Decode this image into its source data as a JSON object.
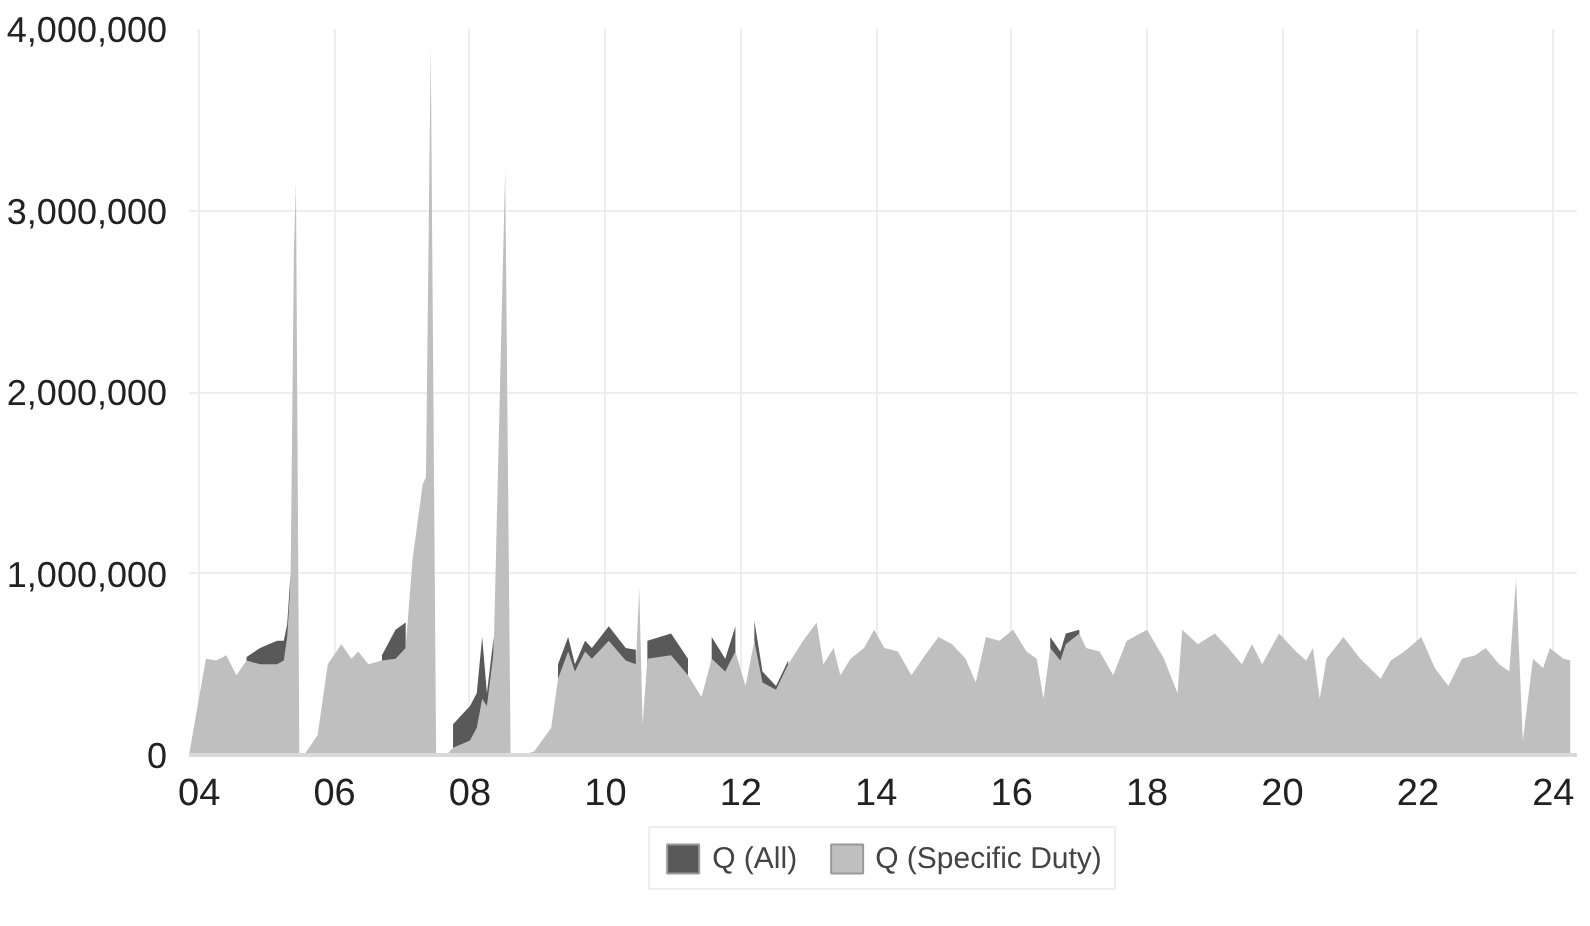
{
  "chart_data": {
    "type": "area",
    "x": [
      2003.85,
      2004.1,
      2004.25,
      2004.4,
      2004.55,
      2004.7,
      2004.9,
      2005.15,
      2005.25,
      2005.3,
      2005.35,
      2005.4,
      2005.43,
      2005.48,
      2005.55,
      2005.75,
      2005.9,
      2006.1,
      2006.25,
      2006.35,
      2006.5,
      2006.7,
      2006.9,
      2007.05,
      2007.15,
      2007.3,
      2007.35,
      2007.42,
      2007.5,
      2007.65,
      2007.75,
      2008.0,
      2008.1,
      2008.18,
      2008.25,
      2008.35,
      2008.52,
      2008.6,
      2008.8,
      2008.95,
      2009.2,
      2009.3,
      2009.45,
      2009.55,
      2009.7,
      2009.8,
      2010.05,
      2010.3,
      2010.45,
      2010.5,
      2010.55,
      2010.62,
      2010.97,
      2011.22,
      2011.42,
      2011.57,
      2011.77,
      2011.92,
      2012.07,
      2012.2,
      2012.32,
      2012.52,
      2012.7,
      2012.92,
      2013.12,
      2013.22,
      2013.37,
      2013.47,
      2013.62,
      2013.82,
      2013.97,
      2014.12,
      2014.32,
      2014.52,
      2014.72,
      2014.92,
      2015.12,
      2015.32,
      2015.47,
      2015.62,
      2015.82,
      2016.02,
      2016.22,
      2016.37,
      2016.47,
      2016.57,
      2016.72,
      2016.8,
      2017.0,
      2017.1,
      2017.3,
      2017.5,
      2017.7,
      2018.0,
      2018.25,
      2018.45,
      2018.52,
      2018.75,
      2019.0,
      2019.2,
      2019.4,
      2019.55,
      2019.7,
      2019.95,
      2020.2,
      2020.35,
      2020.45,
      2020.55,
      2020.65,
      2020.9,
      2021.15,
      2021.45,
      2021.6,
      2021.8,
      2022.05,
      2022.25,
      2022.45,
      2022.65,
      2022.85,
      2023.0,
      2023.2,
      2023.35,
      2023.45,
      2023.55,
      2023.7,
      2023.85,
      2023.95,
      2024.15,
      2024.25
    ],
    "series": [
      {
        "name": "Q (All)",
        "color": "#595959",
        "values": [
          null,
          null,
          null,
          null,
          null,
          540000,
          590000,
          630000,
          630000,
          720000,
          1000000,
          null,
          null,
          null,
          null,
          null,
          null,
          null,
          null,
          null,
          null,
          550000,
          690000,
          730000,
          null,
          null,
          null,
          null,
          null,
          null,
          170000,
          270000,
          340000,
          650000,
          340000,
          650000,
          null,
          null,
          null,
          null,
          null,
          500000,
          650000,
          500000,
          630000,
          590000,
          710000,
          590000,
          580000,
          null,
          null,
          630000,
          670000,
          530000,
          null,
          650000,
          530000,
          710000,
          null,
          740000,
          460000,
          380000,
          520000,
          null,
          null,
          null,
          null,
          null,
          null,
          null,
          null,
          null,
          null,
          null,
          null,
          null,
          null,
          null,
          null,
          null,
          null,
          null,
          null,
          null,
          null,
          650000,
          570000,
          670000,
          690000,
          null,
          null,
          null,
          null,
          null,
          null,
          null,
          null,
          null,
          null,
          null,
          null,
          null,
          null,
          null,
          null,
          null,
          null,
          null,
          null,
          null,
          null,
          null,
          null,
          null,
          null,
          null,
          null,
          null,
          null,
          null,
          null,
          null,
          null,
          null,
          null,
          null,
          null,
          null,
          null
        ]
      },
      {
        "name": "Q (Specific Duty)",
        "color": "#bfbfbf",
        "values": [
          0,
          530000,
          520000,
          550000,
          440000,
          520000,
          500000,
          500000,
          520000,
          650000,
          950000,
          2790000,
          3150000,
          0,
          0,
          110000,
          500000,
          610000,
          530000,
          570000,
          500000,
          520000,
          530000,
          590000,
          1070000,
          1490000,
          1530000,
          3910000,
          0,
          0,
          40000,
          80000,
          150000,
          310000,
          270000,
          570000,
          3230000,
          0,
          0,
          20000,
          150000,
          420000,
          570000,
          460000,
          570000,
          530000,
          630000,
          520000,
          500000,
          920000,
          170000,
          530000,
          550000,
          440000,
          320000,
          530000,
          460000,
          570000,
          380000,
          630000,
          400000,
          360000,
          500000,
          630000,
          730000,
          500000,
          590000,
          440000,
          530000,
          590000,
          690000,
          590000,
          570000,
          440000,
          550000,
          650000,
          610000,
          530000,
          400000,
          650000,
          630000,
          690000,
          570000,
          530000,
          310000,
          590000,
          520000,
          610000,
          670000,
          590000,
          570000,
          440000,
          630000,
          690000,
          530000,
          340000,
          690000,
          610000,
          670000,
          590000,
          500000,
          610000,
          500000,
          670000,
          570000,
          520000,
          590000,
          310000,
          530000,
          650000,
          530000,
          420000,
          520000,
          570000,
          650000,
          480000,
          380000,
          530000,
          550000,
          590000,
          500000,
          460000,
          970000,
          80000,
          530000,
          480000,
          590000,
          530000,
          520000
        ]
      }
    ],
    "xlim": [
      2003.85,
      2024.35
    ],
    "xticks": [
      {
        "value": 2004,
        "label": "04"
      },
      {
        "value": 2006,
        "label": "06"
      },
      {
        "value": 2008,
        "label": "08"
      },
      {
        "value": 2010,
        "label": "10"
      },
      {
        "value": 2012,
        "label": "12"
      },
      {
        "value": 2014,
        "label": "14"
      },
      {
        "value": 2016,
        "label": "16"
      },
      {
        "value": 2018,
        "label": "18"
      },
      {
        "value": 2020,
        "label": "20"
      },
      {
        "value": 2022,
        "label": "22"
      },
      {
        "value": 2024,
        "label": "24"
      }
    ],
    "ylim": [
      0,
      4000000
    ],
    "yticks": [
      {
        "value": 0,
        "label": "0"
      },
      {
        "value": 1000000,
        "label": "1,000,000"
      },
      {
        "value": 2000000,
        "label": "2,000,000"
      },
      {
        "value": 3000000,
        "label": "3,000,000"
      },
      {
        "value": 4000000,
        "label": "4,000,000"
      }
    ],
    "grid": true,
    "legend": "bottom"
  }
}
